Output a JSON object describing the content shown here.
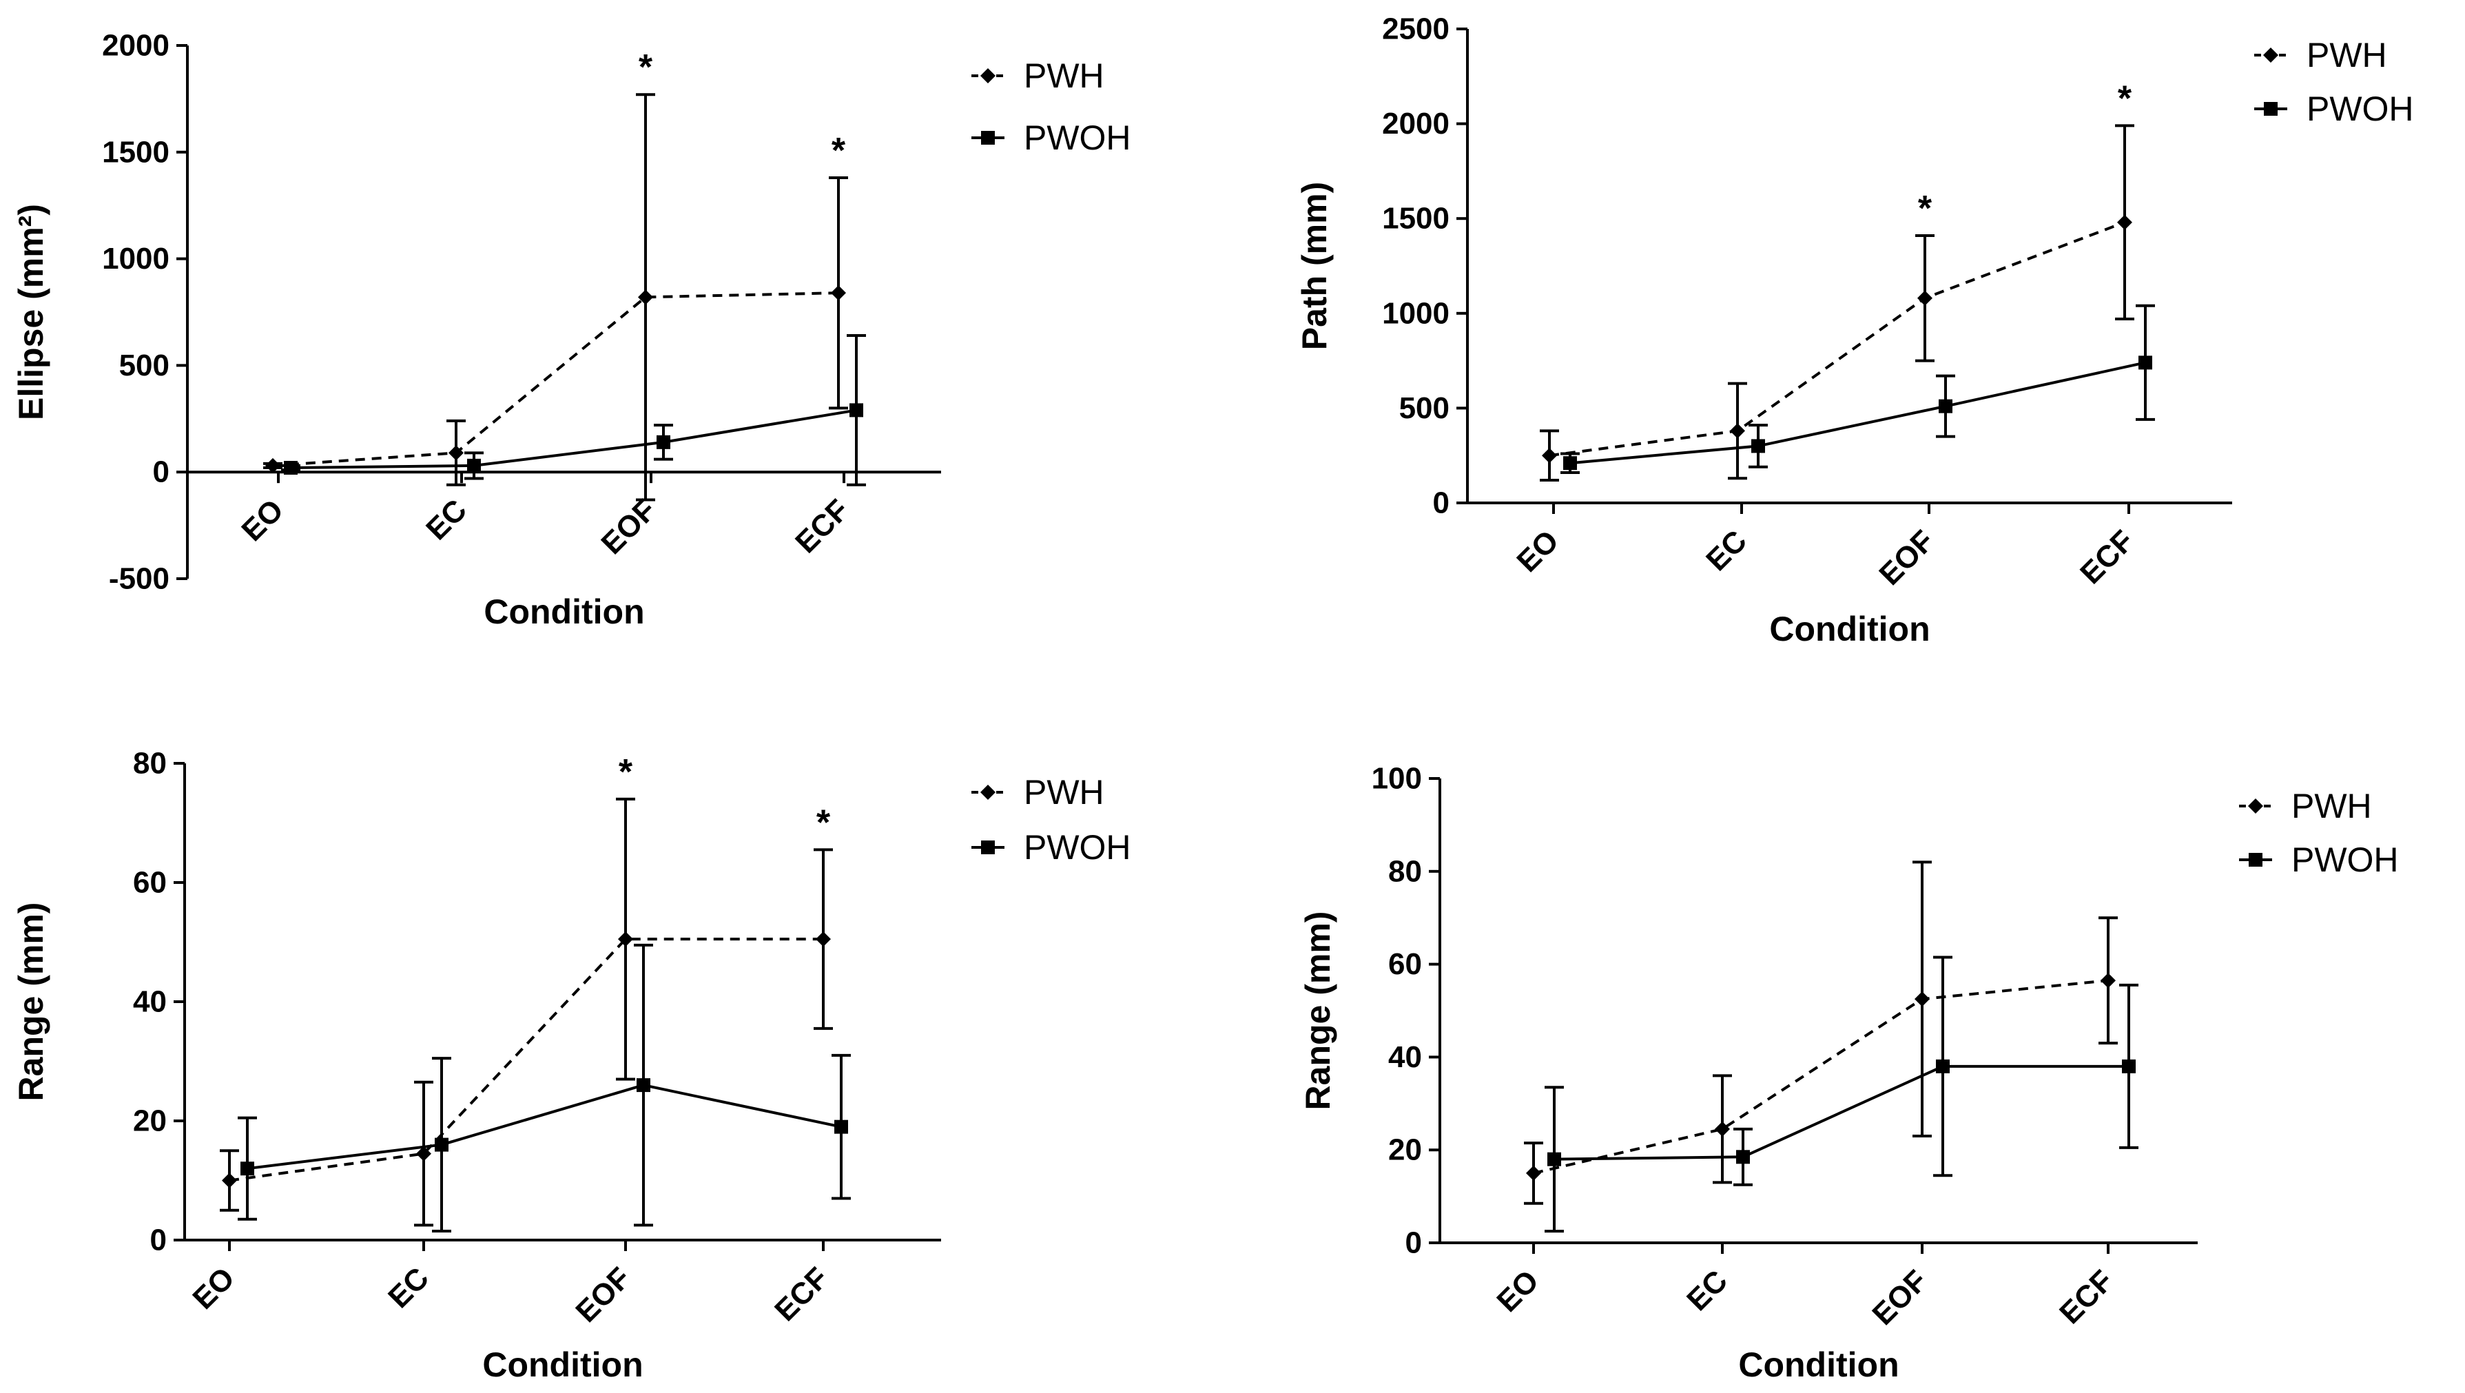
{
  "chart_data": [
    {
      "type": "line",
      "title": "",
      "xlabel": "Condition",
      "ylabel": "Ellipse (mm²)",
      "ylim": [
        -500,
        2000
      ],
      "yticks": [
        -500,
        0,
        500,
        1000,
        1500,
        2000
      ],
      "categories": [
        "EO",
        "EC",
        "EOF",
        "ECF"
      ],
      "significance": [
        "",
        "",
        "*",
        "*"
      ],
      "legend_position": "right",
      "series": [
        {
          "name": "PWH",
          "style": "dashed",
          "marker": "diamond",
          "values": [
            30,
            90,
            820,
            840
          ],
          "errors": [
            10,
            150,
            950,
            540
          ]
        },
        {
          "name": "PWOH",
          "style": "solid",
          "marker": "square",
          "values": [
            20,
            30,
            140,
            290
          ],
          "errors": [
            10,
            60,
            80,
            350
          ]
        }
      ]
    },
    {
      "type": "line",
      "title": "",
      "xlabel": "Condition",
      "ylabel": "Path (mm)",
      "ylim": [
        0,
        2500
      ],
      "yticks": [
        0,
        500,
        1000,
        1500,
        2000,
        2500
      ],
      "categories": [
        "EO",
        "EC",
        "EOF",
        "ECF"
      ],
      "significance": [
        "",
        "",
        "*",
        "*"
      ],
      "legend_position": "top-right",
      "series": [
        {
          "name": "PWH",
          "style": "dashed",
          "marker": "diamond",
          "values": [
            250,
            380,
            1080,
            1480
          ],
          "errors": [
            130,
            250,
            330,
            510
          ]
        },
        {
          "name": "PWOH",
          "style": "solid",
          "marker": "square",
          "values": [
            210,
            300,
            510,
            740
          ],
          "errors": [
            50,
            110,
            160,
            300
          ]
        }
      ]
    },
    {
      "type": "line",
      "title": "",
      "xlabel": "Condition",
      "ylabel": "Range (mm)",
      "ylim": [
        0,
        80
      ],
      "yticks": [
        0,
        20,
        40,
        60,
        80
      ],
      "categories": [
        "EO",
        "EC",
        "EOF",
        "ECF"
      ],
      "significance": [
        "",
        "",
        "*",
        "*"
      ],
      "legend_position": "right",
      "series": [
        {
          "name": "PWH",
          "style": "dashed",
          "marker": "diamond",
          "values": [
            10,
            14.5,
            50.5,
            50.5
          ],
          "errors": [
            5,
            12,
            23.5,
            15
          ]
        },
        {
          "name": "PWOH",
          "style": "solid",
          "marker": "square",
          "values": [
            12,
            16,
            26,
            19
          ],
          "errors": [
            8.5,
            14.5,
            23.5,
            12
          ]
        }
      ]
    },
    {
      "type": "line",
      "title": "",
      "xlabel": "Condition",
      "ylabel": "Range (mm)",
      "ylim": [
        0,
        100
      ],
      "yticks": [
        0,
        20,
        40,
        60,
        80,
        100
      ],
      "categories": [
        "EO",
        "EC",
        "EOF",
        "ECF"
      ],
      "significance": [
        "",
        "",
        "",
        ""
      ],
      "legend_position": "right",
      "series": [
        {
          "name": "PWH",
          "style": "dashed",
          "marker": "diamond",
          "values": [
            15,
            24.5,
            52.5,
            56.5
          ],
          "errors": [
            6.5,
            11.5,
            29.5,
            13.5
          ]
        },
        {
          "name": "PWOH",
          "style": "solid",
          "marker": "square",
          "values": [
            18,
            18.5,
            38,
            38
          ],
          "errors": [
            15.5,
            6,
            23.5,
            17.5
          ]
        }
      ]
    }
  ]
}
